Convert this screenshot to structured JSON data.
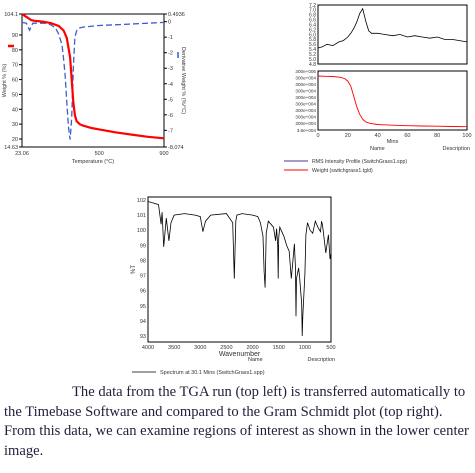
{
  "chart_data": [
    {
      "type": "line",
      "ylabel_left": "Weight % (%)",
      "ylabel_right": "Derivative Weight % (%/°C)",
      "xlabel": "Temperature (°C)",
      "x_ticks": [
        "23.06",
        "500",
        "900"
      ],
      "x_range": [
        23.06,
        900
      ],
      "y_left_ticks": [
        "104.1",
        "90",
        "80",
        "70",
        "60",
        "50",
        "40",
        "30",
        "20",
        "14.63"
      ],
      "y_left_range": [
        14.63,
        104.1
      ],
      "y_right_ticks": [
        "0.4936",
        "0",
        "-1",
        "-2",
        "-3",
        "-4",
        "-5",
        "-6",
        "-7",
        "-8.074"
      ],
      "y_right_range": [
        -8.074,
        0.4936
      ],
      "series": [
        {
          "style": "solid",
          "color": "#ff0000",
          "axis": "left",
          "x": [
            23,
            60,
            80,
            100,
            150,
            200,
            250,
            280,
            300,
            320,
            330,
            340,
            350,
            360,
            380,
            400,
            450,
            500,
            600,
            700,
            800,
            900
          ],
          "y": [
            104,
            101.5,
            100,
            99.5,
            99,
            98,
            96,
            93,
            88,
            75,
            60,
            45,
            36,
            32,
            30,
            29,
            27.5,
            26.5,
            24.5,
            23,
            21.5,
            20.5
          ]
        },
        {
          "style": "dashed",
          "color": "#3a5fcd",
          "axis": "right",
          "x": [
            23,
            50,
            70,
            90,
            120,
            160,
            200,
            230,
            250,
            270,
            280,
            290,
            300,
            310,
            320,
            330,
            340,
            350,
            360,
            370,
            380,
            400,
            500,
            600,
            700,
            800,
            900
          ],
          "y": [
            -0.05,
            -0.1,
            -0.55,
            -0.1,
            -0.1,
            -0.1,
            -0.2,
            -0.4,
            -0.8,
            -1.5,
            -2.4,
            -3.5,
            -5.2,
            -6.8,
            -7.6,
            -6.2,
            -3.0,
            -1.0,
            -0.6,
            -0.45,
            -0.4,
            -0.35,
            -0.25,
            -0.2,
            -0.15,
            -0.1,
            -0.05
          ]
        }
      ]
    },
    {
      "type": "line",
      "y_ticks": [
        "7.2",
        "7.0",
        "6.8",
        "6.6",
        "6.4",
        "6.2",
        "6.0",
        "5.8",
        "5.6",
        "5.4",
        "5.2",
        "5.0",
        "4.8"
      ],
      "y_range": [
        4.8,
        7.2
      ],
      "x_range": [
        0,
        100
      ],
      "series": [
        {
          "color": "#000000",
          "x": [
            0,
            3,
            6,
            10,
            14,
            17,
            20,
            22,
            24,
            26,
            28,
            30,
            32,
            34,
            36,
            40,
            45,
            50,
            55,
            60,
            65,
            70,
            75,
            80,
            85,
            90,
            95,
            100
          ],
          "y": [
            5.45,
            5.5,
            5.6,
            5.55,
            5.7,
            5.75,
            5.9,
            6.05,
            6.25,
            6.5,
            6.85,
            7.05,
            6.55,
            6.15,
            6.05,
            6.05,
            6.0,
            5.95,
            6.0,
            5.9,
            5.95,
            5.9,
            5.85,
            5.9,
            5.8,
            5.8,
            5.75,
            5.7
          ]
        }
      ]
    },
    {
      "type": "line",
      "xlabel": "Mins",
      "x_ticks": [
        "0",
        "20",
        "40",
        "60",
        "80",
        "100"
      ],
      "x_range": [
        0,
        100
      ],
      "y_ticks": [
        "300e+006",
        "300e+004",
        "300e+004",
        "300e+004",
        "300e+004",
        "300e+004",
        "300e+004",
        "300e+004",
        "300e+004",
        "3.8e+004"
      ],
      "series": [
        {
          "color": "#ff0000",
          "x": [
            0,
            5,
            10,
            15,
            18,
            20,
            22,
            24,
            26,
            28,
            30,
            32,
            35,
            40,
            50,
            60,
            70,
            80,
            90,
            100
          ],
          "y": [
            1.0,
            0.995,
            0.99,
            0.975,
            0.95,
            0.9,
            0.8,
            0.6,
            0.4,
            0.25,
            0.15,
            0.1,
            0.07,
            0.05,
            0.035,
            0.025,
            0.02,
            0.015,
            0.01,
            0.005
          ]
        }
      ]
    },
    {
      "type": "line",
      "xlabel": "Wavenumber",
      "ylabel": "%T",
      "x_ticks": [
        "4000",
        "3500",
        "3000",
        "2500",
        "2000",
        "1500",
        "1000",
        "500"
      ],
      "x_range": [
        4000,
        500
      ],
      "y_ticks": [
        "102",
        "101",
        "100",
        "99",
        "98",
        "97",
        "96",
        "95",
        "94",
        "93"
      ],
      "y_range": [
        92.6,
        102.2
      ],
      "series": [
        {
          "color": "#000000",
          "x": [
            4000,
            3900,
            3800,
            3750,
            3730,
            3700,
            3650,
            3600,
            3560,
            3500,
            3300,
            3100,
            3000,
            2950,
            2900,
            2800,
            2500,
            2380,
            2350,
            2320,
            2300,
            2200,
            2000,
            1900,
            1850,
            1800,
            1780,
            1760,
            1750,
            1740,
            1700,
            1600,
            1560,
            1540,
            1520,
            1510,
            1500,
            1480,
            1400,
            1350,
            1300,
            1260,
            1200,
            1180,
            1170,
            1160,
            1120,
            1100,
            1060,
            1050,
            1040,
            1000,
            980,
            950,
            900,
            850,
            800,
            750,
            700,
            680,
            660,
            600,
            550,
            520,
            500
          ],
          "y": [
            101.9,
            101.8,
            101.7,
            100.4,
            101.2,
            98.9,
            100.8,
            99.3,
            100.5,
            101.0,
            101.1,
            101.0,
            100.9,
            99.9,
            100.6,
            101.0,
            101.1,
            100.5,
            96.8,
            100.6,
            101.0,
            101.1,
            101.0,
            100.9,
            100.5,
            99.6,
            97.3,
            96.2,
            97.8,
            99.8,
            100.6,
            100.2,
            99.3,
            100.1,
            99.0,
            96.8,
            99.5,
            100.2,
            99.6,
            99.0,
            98.6,
            96.8,
            99.1,
            97.6,
            94.3,
            96.8,
            97.5,
            96.9,
            95.1,
            93.0,
            94.3,
            97.1,
            99.7,
            100.5,
            100.0,
            99.8,
            100.6,
            100.2,
            99.9,
            100.6,
            100.3,
            98.5,
            99.7,
            98.1,
            98.5
          ]
        }
      ]
    }
  ],
  "legend_top_right": [
    {
      "label": "RMS Intensity Profile (SwitchGrass1.spp)",
      "color": "#4b3a8c"
    },
    {
      "label": "Weight (switchgrass1.tgld)",
      "color": "#ff0000"
    }
  ],
  "top_right_labels": {
    "name": "Name",
    "description": "Description"
  },
  "ftir_labels": {
    "name": "Name",
    "description": "Description",
    "legend": "Spectrum at 30.1 Mins (SwitchGrass1.spp)"
  },
  "caption": "The data from the TGA run (top left) is transferred automatically to the Timebase Software and compared to the Gram Schmidt plot (top right). From this data, we can examine regions of interest as shown in the lower center image."
}
